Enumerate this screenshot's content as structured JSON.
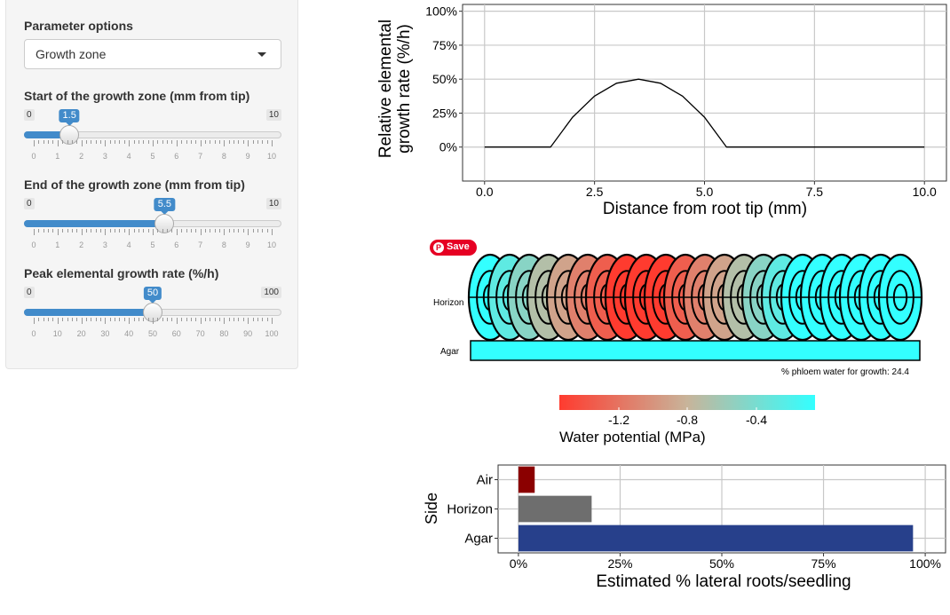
{
  "sidebar": {
    "title": "Parameter options",
    "select": {
      "value": "Growth zone"
    },
    "sliders": [
      {
        "label": "Start of the growth zone (mm from tip)",
        "min_label": "0",
        "max_label": "10",
        "min": 0,
        "max": 10,
        "value": 1.5,
        "value_label": "1.5",
        "ticks": [
          "0",
          "1",
          "2",
          "3",
          "4",
          "5",
          "6",
          "7",
          "8",
          "9",
          "10"
        ]
      },
      {
        "label": "End of the growth zone (mm from tip)",
        "min_label": "0",
        "max_label": "10",
        "min": 0,
        "max": 10,
        "value": 5.5,
        "value_label": "5.5",
        "ticks": [
          "0",
          "1",
          "2",
          "3",
          "4",
          "5",
          "6",
          "7",
          "8",
          "9",
          "10"
        ]
      },
      {
        "label": "Peak elemental growth rate (%/h)",
        "min_label": "0",
        "max_label": "100",
        "min": 0,
        "max": 100,
        "value": 50,
        "value_label": "50",
        "ticks": [
          "0",
          "10",
          "20",
          "30",
          "40",
          "50",
          "60",
          "70",
          "80",
          "90",
          "100"
        ]
      }
    ]
  },
  "pin_button": {
    "label": "Save"
  },
  "root_diagram": {
    "horizon_label": "Horizon",
    "agar_label": "Agar",
    "phloem_note": "% phloem water for growth: 24.4",
    "legend_title": "Water potential (MPa)",
    "legend_ticks": [
      "-1.2",
      "-0.8",
      "-0.4"
    ],
    "colors": {
      "low": "#ff3b2f",
      "mid": "#c8b49a",
      "high": "#33ffff",
      "agar": "#33ffff"
    }
  },
  "chart_data": [
    {
      "type": "line",
      "ylabel": "Relative elemental growth rate (%/h)",
      "ylabel_lines": [
        "Relative elemental",
        "growth rate (%/h)"
      ],
      "xlabel": "Distance from root tip (mm)",
      "xlim": [
        -0.5,
        10.5
      ],
      "ylim": [
        -0.25,
        1.05
      ],
      "x_ticks": [
        0,
        2.5,
        5,
        7.5,
        10
      ],
      "x_tick_labels": [
        "0.0",
        "2.5",
        "5.0",
        "7.5",
        "10.0"
      ],
      "y_ticks": [
        0,
        0.25,
        0.5,
        0.75,
        1.0
      ],
      "y_tick_labels": [
        "0%",
        "25%",
        "50%",
        "75%",
        "100%"
      ],
      "grid": true,
      "series": [
        {
          "x": [
            0,
            0.5,
            1,
            1.5,
            2,
            2.5,
            3,
            3.5,
            4,
            4.5,
            5,
            5.5,
            6,
            6.5,
            7,
            7.5,
            8,
            8.5,
            9,
            9.5,
            10
          ],
          "y": [
            0,
            0,
            0,
            0,
            0.22,
            0.375,
            0.47,
            0.5,
            0.47,
            0.375,
            0.22,
            0,
            0,
            0,
            0,
            0,
            0,
            0,
            0,
            0,
            0
          ]
        }
      ]
    },
    {
      "type": "bar",
      "orientation": "horizontal",
      "ylabel": "Side",
      "xlabel": "Estimated % lateral roots/seedling",
      "categories": [
        "Air",
        "Horizon",
        "Agar"
      ],
      "values": [
        0.04,
        0.18,
        0.97
      ],
      "colors": [
        "#8b0000",
        "#6e6e6e",
        "#27408b"
      ],
      "xlim": [
        -0.05,
        1.05
      ],
      "x_ticks": [
        0,
        0.25,
        0.5,
        0.75,
        1.0
      ],
      "x_tick_labels": [
        "0%",
        "25%",
        "50%",
        "75%",
        "100%"
      ],
      "grid": true
    }
  ]
}
